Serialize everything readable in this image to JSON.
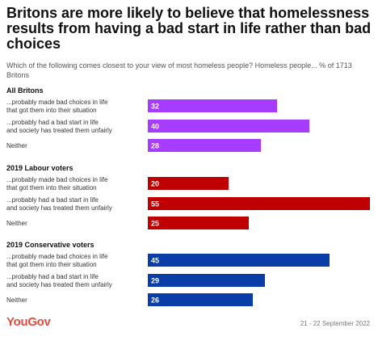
{
  "title": "Britons are more likely to believe that homelessness results from having a bad start in life rather than bad choices",
  "subtitle": "Which of the following comes closest to your view of most homeless people? Homeless people... % of 1713 Britons",
  "brand": "YouGov",
  "date": "21 - 22 September 2022",
  "colors": {
    "all_britons": "#a63cff",
    "labour": "#c00000",
    "conservative": "#0a3da8",
    "brand": "#e64a3c"
  },
  "chart_data": {
    "type": "bar",
    "orientation": "horizontal",
    "xlim": [
      0,
      55
    ],
    "categories": [
      "...probably made bad choices in life that got them into their situation",
      "...probably had a bad start in life and society has treated them unfairly",
      "Neither"
    ],
    "groups": [
      {
        "name": "All Britons",
        "color": "#a63cff",
        "values": [
          32,
          40,
          28
        ]
      },
      {
        "name": "2019 Labour voters",
        "color": "#c00000",
        "values": [
          20,
          55,
          25
        ]
      },
      {
        "name": "2019 Conservative voters",
        "color": "#0a3da8",
        "values": [
          45,
          29,
          26
        ]
      }
    ]
  }
}
